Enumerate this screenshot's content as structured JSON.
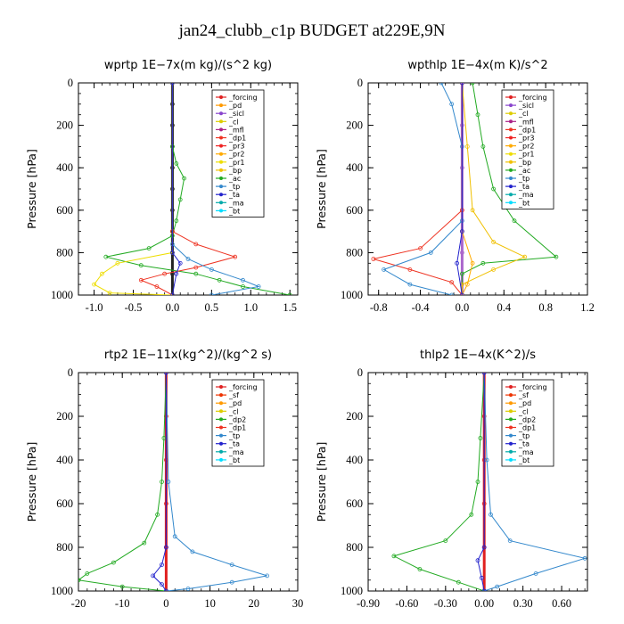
{
  "title": "jan24_clubb_c1p  BUDGET at229E,9N",
  "colors": {
    "forcing": "#e02020",
    "pd": "#ff9900",
    "sicl": "#8844cc",
    "cl": "#ddcc00",
    "mfl": "#aa2288",
    "dp1": "#ee3322",
    "dp2": "#22aa22",
    "pr1": "#eedd00",
    "pr2": "#ffaa00",
    "pr3": "#ee2222",
    "bp": "#f0c000",
    "ac": "#22aa22",
    "tp": "#3388cc",
    "ta": "#2222cc",
    "ma": "#00aaaa",
    "bt": "#00ddff",
    "sf": "#ee3300"
  },
  "chart_data": [
    {
      "type": "line",
      "title": "wprtp   1E−7x(m kg)/(s^2 kg)",
      "ylabel": "Pressure [hPa]",
      "xlim": [
        -1.2,
        1.6
      ],
      "ylim": [
        1000,
        0
      ],
      "xticks": [
        -1.0,
        -0.5,
        0.0,
        0.5,
        1.0,
        1.5
      ],
      "xtick_labels": [
        "-1.0",
        "-0.5",
        "0.0",
        "0.5",
        "1.0",
        "1.5"
      ],
      "yticks": [
        0,
        200,
        400,
        600,
        800,
        1000
      ],
      "ytick_labels": [
        "0",
        "200",
        "400",
        "600",
        "800",
        "1000"
      ],
      "legend_position": "top-right",
      "legend": [
        "_forcing",
        "_pd",
        "_sicl",
        "_cl",
        "_mfl",
        "_dp1",
        "_pr3",
        "_pr2",
        "_pr1",
        "_bp",
        "_ac",
        "_tp",
        "_ta",
        "_ma",
        "_bt"
      ],
      "series": [
        {
          "name": "_forcing",
          "color": "#222222",
          "values": [
            [
              0.0,
              0
            ],
            [
              0.0,
              100
            ],
            [
              0.0,
              200
            ],
            [
              0.0,
              300
            ],
            [
              0.0,
              400
            ],
            [
              0.0,
              500
            ],
            [
              0.0,
              600
            ],
            [
              0.0,
              700
            ],
            [
              0.0,
              800
            ],
            [
              0.0,
              900
            ],
            [
              0.0,
              1000
            ]
          ]
        },
        {
          "name": "_ac",
          "color": "#22aa22",
          "values": [
            [
              0.0,
              0
            ],
            [
              0.0,
              300
            ],
            [
              0.05,
              380
            ],
            [
              0.15,
              450
            ],
            [
              0.1,
              550
            ],
            [
              0.05,
              650
            ],
            [
              0.0,
              720
            ],
            [
              -0.3,
              780
            ],
            [
              -0.85,
              820
            ],
            [
              -0.4,
              860
            ],
            [
              0.3,
              900
            ],
            [
              0.6,
              930
            ],
            [
              0.9,
              960
            ],
            [
              1.5,
              1000
            ]
          ]
        },
        {
          "name": "_dp1",
          "color": "#ee3322",
          "values": [
            [
              0.0,
              0
            ],
            [
              0.0,
              700
            ],
            [
              0.3,
              760
            ],
            [
              0.8,
              820
            ],
            [
              0.3,
              870
            ],
            [
              -0.1,
              900
            ],
            [
              -0.4,
              930
            ],
            [
              -0.2,
              960
            ],
            [
              0.0,
              1000
            ]
          ]
        },
        {
          "name": "_tp",
          "color": "#3388cc",
          "values": [
            [
              0.0,
              0
            ],
            [
              0.0,
              760
            ],
            [
              0.2,
              830
            ],
            [
              0.5,
              880
            ],
            [
              0.9,
              930
            ],
            [
              1.1,
              960
            ],
            [
              0.5,
              1000
            ]
          ]
        },
        {
          "name": "_pr1",
          "color": "#eedd00",
          "values": [
            [
              0.0,
              0
            ],
            [
              0.0,
              800
            ],
            [
              -0.7,
              850
            ],
            [
              -0.9,
              900
            ],
            [
              -1.0,
              950
            ],
            [
              -0.8,
              990
            ],
            [
              0.0,
              1000
            ]
          ]
        },
        {
          "name": "_ta",
          "color": "#2222cc",
          "values": [
            [
              0.0,
              0
            ],
            [
              0.0,
              800
            ],
            [
              0.1,
              850
            ],
            [
              0.05,
              900
            ],
            [
              0.0,
              1000
            ]
          ]
        }
      ]
    },
    {
      "type": "line",
      "title": "wpthlp   1E−4x(m K)/s^2",
      "ylabel": "Pressure [hPa]",
      "xlim": [
        -0.9,
        1.2
      ],
      "ylim": [
        1000,
        0
      ],
      "xticks": [
        -0.8,
        -0.4,
        0.0,
        0.4,
        0.8,
        1.2
      ],
      "xtick_labels": [
        "-0.8",
        "-0.4",
        "0.0",
        "0.4",
        "0.8",
        "1.2"
      ],
      "yticks": [
        0,
        200,
        400,
        600,
        800,
        1000
      ],
      "ytick_labels": [
        "0",
        "200",
        "400",
        "600",
        "800",
        "1000"
      ],
      "legend_position": "top-right",
      "legend": [
        "_forcing",
        "_sicl",
        "_cl",
        "_mfl",
        "_dp1",
        "_pr3",
        "_pr2",
        "_pr1",
        "_bp",
        "_ac",
        "_tp",
        "_ta",
        "_ma",
        "_bt"
      ],
      "series": [
        {
          "name": "_forcing",
          "color": "#aa66cc",
          "values": [
            [
              0.0,
              0
            ],
            [
              0.0,
              200
            ],
            [
              0.0,
              400
            ],
            [
              0.0,
              600
            ],
            [
              0.0,
              800
            ],
            [
              0.0,
              1000
            ]
          ]
        },
        {
          "name": "_ac",
          "color": "#22aa22",
          "values": [
            [
              0.1,
              0
            ],
            [
              0.15,
              150
            ],
            [
              0.2,
              300
            ],
            [
              0.3,
              500
            ],
            [
              0.5,
              650
            ],
            [
              0.9,
              820
            ],
            [
              0.2,
              850
            ],
            [
              0.0,
              900
            ],
            [
              0.0,
              1000
            ]
          ]
        },
        {
          "name": "_pr1",
          "color": "#f0c000",
          "values": [
            [
              0.0,
              0
            ],
            [
              0.05,
              300
            ],
            [
              0.1,
              600
            ],
            [
              0.3,
              750
            ],
            [
              0.6,
              820
            ],
            [
              0.3,
              880
            ],
            [
              0.0,
              950
            ],
            [
              0.0,
              1000
            ]
          ]
        },
        {
          "name": "_dp1",
          "color": "#ee3322",
          "values": [
            [
              0.0,
              0
            ],
            [
              0.0,
              600
            ],
            [
              -0.4,
              780
            ],
            [
              -0.85,
              830
            ],
            [
              -0.5,
              880
            ],
            [
              -0.1,
              940
            ],
            [
              0.0,
              1000
            ]
          ]
        },
        {
          "name": "_tp",
          "color": "#3388cc",
          "values": [
            [
              -0.2,
              0
            ],
            [
              -0.1,
              100
            ],
            [
              0.0,
              300
            ],
            [
              0.0,
              650
            ],
            [
              -0.3,
              800
            ],
            [
              -0.75,
              880
            ],
            [
              -0.5,
              950
            ],
            [
              -0.1,
              1000
            ]
          ]
        },
        {
          "name": "_pr2",
          "color": "#ffaa00",
          "values": [
            [
              0.0,
              0
            ],
            [
              0.0,
              700
            ],
            [
              0.1,
              850
            ],
            [
              0.05,
              950
            ],
            [
              0.0,
              1000
            ]
          ]
        },
        {
          "name": "_ta",
          "color": "#2222cc",
          "values": [
            [
              0.0,
              0
            ],
            [
              0.0,
              700
            ],
            [
              -0.05,
              850
            ],
            [
              0.0,
              1000
            ]
          ]
        }
      ]
    },
    {
      "type": "line",
      "title": "rtp2   1E−11x(kg^2)/(kg^2 s)",
      "ylabel": "Pressure [hPa]",
      "xlim": [
        -20,
        30
      ],
      "ylim": [
        1000,
        0
      ],
      "xticks": [
        -20,
        -10,
        0,
        10,
        20,
        30
      ],
      "xtick_labels": [
        "-20",
        "-10",
        "0",
        "10",
        "20",
        "30"
      ],
      "yticks": [
        0,
        200,
        400,
        600,
        800,
        1000
      ],
      "ytick_labels": [
        "0",
        "200",
        "400",
        "600",
        "800",
        "1000"
      ],
      "legend_position": "top-right",
      "legend": [
        "_forcing",
        "_sf",
        "_pd",
        "_cl",
        "_dp2",
        "_dp1",
        "_tp",
        "_ta",
        "_ma",
        "_bt"
      ],
      "series": [
        {
          "name": "_forcing",
          "color": "#e02020",
          "values": [
            [
              0,
              0
            ],
            [
              0,
              200
            ],
            [
              0,
              400
            ],
            [
              0,
              600
            ],
            [
              0,
              800
            ],
            [
              0,
              1000
            ]
          ]
        },
        {
          "name": "_dp2",
          "color": "#22aa22",
          "values": [
            [
              0,
              0
            ],
            [
              -0.5,
              300
            ],
            [
              -1,
              500
            ],
            [
              -2,
              650
            ],
            [
              -5,
              780
            ],
            [
              -12,
              870
            ],
            [
              -18,
              920
            ],
            [
              -20,
              950
            ],
            [
              -10,
              980
            ],
            [
              0,
              1000
            ]
          ]
        },
        {
          "name": "_tp",
          "color": "#3388cc",
          "values": [
            [
              0,
              0
            ],
            [
              0.5,
              500
            ],
            [
              2,
              750
            ],
            [
              6,
              820
            ],
            [
              15,
              880
            ],
            [
              23,
              930
            ],
            [
              15,
              960
            ],
            [
              5,
              990
            ],
            [
              0,
              1000
            ]
          ]
        },
        {
          "name": "_ta",
          "color": "#2222cc",
          "values": [
            [
              0,
              0
            ],
            [
              0,
              800
            ],
            [
              -1,
              880
            ],
            [
              -3,
              930
            ],
            [
              -1,
              970
            ],
            [
              0,
              1000
            ]
          ]
        }
      ]
    },
    {
      "type": "line",
      "title": "thlp2   1E−4x(K^2)/s",
      "ylabel": "Pressure [hPa]",
      "xlim": [
        -0.9,
        0.8
      ],
      "ylim": [
        1000,
        0
      ],
      "xticks": [
        -0.9,
        -0.6,
        -0.3,
        0.0,
        0.3,
        0.6
      ],
      "xtick_labels": [
        "-0.90",
        "-0.60",
        "-0.30",
        "0.00",
        "0.30",
        "0.60"
      ],
      "yticks": [
        0,
        200,
        400,
        600,
        800,
        1000
      ],
      "ytick_labels": [
        "0",
        "200",
        "400",
        "600",
        "800",
        "1000"
      ],
      "legend_position": "top-right",
      "legend": [
        "_forcing",
        "_sf",
        "_pd",
        "_cl",
        "_dp2",
        "_dp1",
        "_tp",
        "_ta",
        "_ma",
        "_bt"
      ],
      "series": [
        {
          "name": "_forcing",
          "color": "#e02020",
          "values": [
            [
              0.0,
              0
            ],
            [
              0.0,
              200
            ],
            [
              0.0,
              400
            ],
            [
              0.0,
              600
            ],
            [
              0.0,
              800
            ],
            [
              0.0,
              1000
            ]
          ]
        },
        {
          "name": "_dp2",
          "color": "#22aa22",
          "values": [
            [
              0.0,
              0
            ],
            [
              -0.03,
              300
            ],
            [
              -0.05,
              500
            ],
            [
              -0.1,
              650
            ],
            [
              -0.3,
              770
            ],
            [
              -0.7,
              840
            ],
            [
              -0.5,
              900
            ],
            [
              -0.2,
              960
            ],
            [
              0.0,
              1000
            ]
          ]
        },
        {
          "name": "_tp",
          "color": "#3388cc",
          "values": [
            [
              0.0,
              0
            ],
            [
              0.02,
              400
            ],
            [
              0.05,
              650
            ],
            [
              0.2,
              770
            ],
            [
              0.78,
              850
            ],
            [
              0.4,
              920
            ],
            [
              0.1,
              980
            ],
            [
              0.0,
              1000
            ]
          ]
        },
        {
          "name": "_ta",
          "color": "#2222cc",
          "values": [
            [
              0.0,
              0
            ],
            [
              0.0,
              800
            ],
            [
              -0.05,
              860
            ],
            [
              -0.02,
              940
            ],
            [
              0.0,
              1000
            ]
          ]
        }
      ]
    }
  ]
}
